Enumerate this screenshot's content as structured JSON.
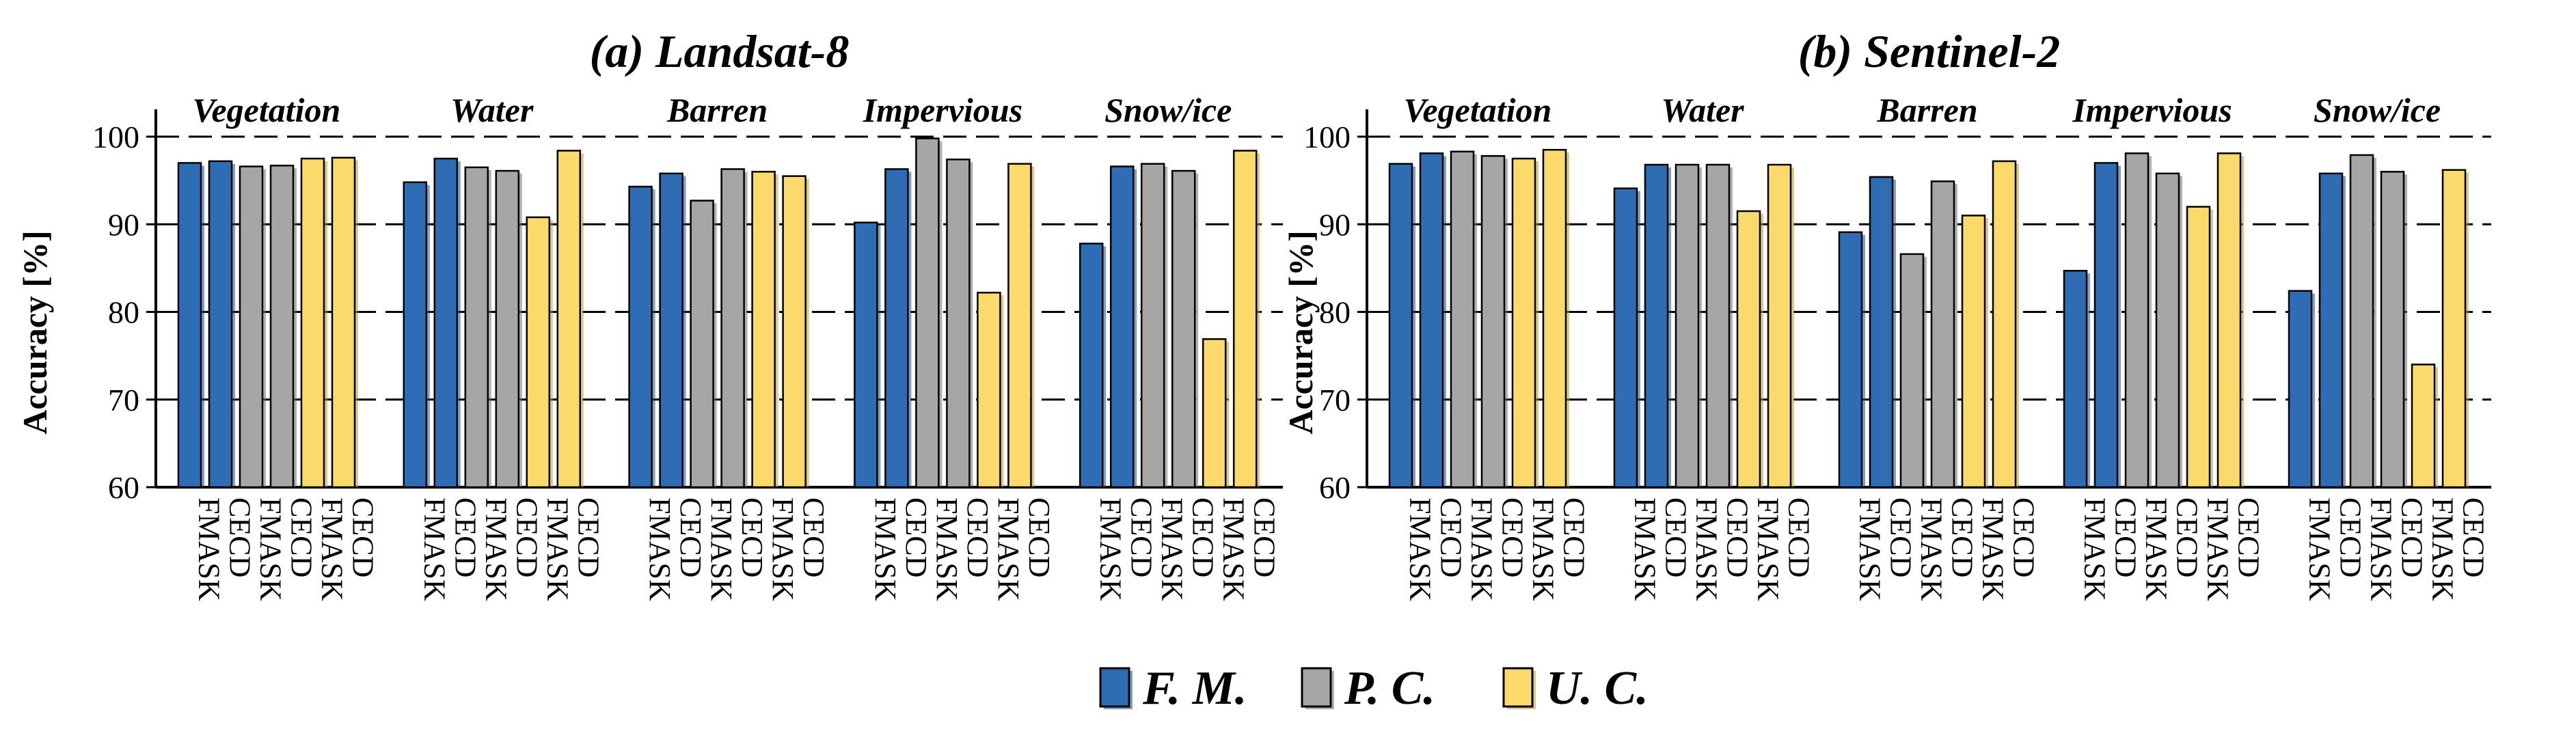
{
  "colors": {
    "fm": "#2e6db4",
    "pc": "#a6a6a6",
    "uc": "#fcd96b",
    "fm_shadow": "#1f4e8a",
    "pc_shadow": "#707070",
    "uc_shadow": "#b89a2c"
  },
  "legend": {
    "items": [
      {
        "key": "fm",
        "label": "F. M."
      },
      {
        "key": "pc",
        "label": "P. C."
      },
      {
        "key": "uc",
        "label": "U. C."
      }
    ]
  },
  "chart_data": [
    {
      "type": "bar",
      "title": "(a) Landsat-8",
      "ylabel": "Accuracy [%]",
      "ylim": [
        60,
        100
      ],
      "yticks": [
        60,
        70,
        80,
        90,
        100
      ],
      "grid": "dashed horizontal at 70, 80, 90, 100",
      "groups": [
        {
          "name": "Vegetation",
          "bars": [
            {
              "label": "FMASK",
              "metric": "fm",
              "value": 97.0
            },
            {
              "label": "CECD",
              "metric": "fm",
              "value": 97.2
            },
            {
              "label": "FMASK",
              "metric": "pc",
              "value": 96.6
            },
            {
              "label": "CECD",
              "metric": "pc",
              "value": 96.7
            },
            {
              "label": "FMASK",
              "metric": "uc",
              "value": 97.5
            },
            {
              "label": "CECD",
              "metric": "uc",
              "value": 97.6
            }
          ]
        },
        {
          "name": "Water",
          "bars": [
            {
              "label": "FMASK",
              "metric": "fm",
              "value": 94.8
            },
            {
              "label": "CECD",
              "metric": "fm",
              "value": 97.5
            },
            {
              "label": "FMASK",
              "metric": "pc",
              "value": 96.5
            },
            {
              "label": "CECD",
              "metric": "pc",
              "value": 96.1
            },
            {
              "label": "FMASK",
              "metric": "uc",
              "value": 90.8
            },
            {
              "label": "CECD",
              "metric": "uc",
              "value": 98.4
            }
          ]
        },
        {
          "name": "Barren",
          "bars": [
            {
              "label": "FMASK",
              "metric": "fm",
              "value": 94.3
            },
            {
              "label": "CECD",
              "metric": "fm",
              "value": 95.8
            },
            {
              "label": "FMASK",
              "metric": "pc",
              "value": 92.7
            },
            {
              "label": "CECD",
              "metric": "pc",
              "value": 96.3
            },
            {
              "label": "FMASK",
              "metric": "uc",
              "value": 96.0
            },
            {
              "label": "CECD",
              "metric": "uc",
              "value": 95.5
            }
          ]
        },
        {
          "name": "Impervious",
          "bars": [
            {
              "label": "FMASK",
              "metric": "fm",
              "value": 90.2
            },
            {
              "label": "CECD",
              "metric": "fm",
              "value": 96.3
            },
            {
              "label": "FMASK",
              "metric": "pc",
              "value": 99.8
            },
            {
              "label": "CECD",
              "metric": "pc",
              "value": 97.4
            },
            {
              "label": "FMASK",
              "metric": "uc",
              "value": 82.2
            },
            {
              "label": "CECD",
              "metric": "uc",
              "value": 96.9
            }
          ]
        },
        {
          "name": "Snow/ice",
          "bars": [
            {
              "label": "FMASK",
              "metric": "fm",
              "value": 87.8
            },
            {
              "label": "CECD",
              "metric": "fm",
              "value": 96.6
            },
            {
              "label": "FMASK",
              "metric": "pc",
              "value": 96.9
            },
            {
              "label": "CECD",
              "metric": "pc",
              "value": 96.1
            },
            {
              "label": "FMASK",
              "metric": "uc",
              "value": 76.9
            },
            {
              "label": "CECD",
              "metric": "uc",
              "value": 98.4
            }
          ]
        }
      ]
    },
    {
      "type": "bar",
      "title": "(b) Sentinel-2",
      "ylabel": "Accuracy [%]",
      "ylim": [
        60,
        100
      ],
      "yticks": [
        60,
        70,
        80,
        90,
        100
      ],
      "grid": "dashed horizontal at 70, 80, 90, 100",
      "groups": [
        {
          "name": "Vegetation",
          "bars": [
            {
              "label": "FMASK",
              "metric": "fm",
              "value": 96.9
            },
            {
              "label": "CECD",
              "metric": "fm",
              "value": 98.1
            },
            {
              "label": "FMASK",
              "metric": "pc",
              "value": 98.3
            },
            {
              "label": "CECD",
              "metric": "pc",
              "value": 97.8
            },
            {
              "label": "FMASK",
              "metric": "uc",
              "value": 97.5
            },
            {
              "label": "CECD",
              "metric": "uc",
              "value": 98.5
            }
          ]
        },
        {
          "name": "Water",
          "bars": [
            {
              "label": "FMASK",
              "metric": "fm",
              "value": 94.1
            },
            {
              "label": "CECD",
              "metric": "fm",
              "value": 96.8
            },
            {
              "label": "FMASK",
              "metric": "pc",
              "value": 96.8
            },
            {
              "label": "CECD",
              "metric": "pc",
              "value": 96.8
            },
            {
              "label": "FMASK",
              "metric": "uc",
              "value": 91.5
            },
            {
              "label": "CECD",
              "metric": "uc",
              "value": 96.8
            }
          ]
        },
        {
          "name": "Barren",
          "bars": [
            {
              "label": "FMASK",
              "metric": "fm",
              "value": 89.1
            },
            {
              "label": "CECD",
              "metric": "fm",
              "value": 95.4
            },
            {
              "label": "FMASK",
              "metric": "pc",
              "value": 86.6
            },
            {
              "label": "CECD",
              "metric": "pc",
              "value": 94.9
            },
            {
              "label": "FMASK",
              "metric": "uc",
              "value": 91.0
            },
            {
              "label": "CECD",
              "metric": "uc",
              "value": 97.2
            }
          ]
        },
        {
          "name": "Impervious",
          "bars": [
            {
              "label": "FMASK",
              "metric": "fm",
              "value": 84.7
            },
            {
              "label": "CECD",
              "metric": "fm",
              "value": 97.0
            },
            {
              "label": "FMASK",
              "metric": "pc",
              "value": 98.1
            },
            {
              "label": "CECD",
              "metric": "pc",
              "value": 95.8
            },
            {
              "label": "FMASK",
              "metric": "uc",
              "value": 92.0
            },
            {
              "label": "CECD",
              "metric": "uc",
              "value": 98.1
            }
          ]
        },
        {
          "name": "Snow/ice",
          "bars": [
            {
              "label": "FMASK",
              "metric": "fm",
              "value": 82.4
            },
            {
              "label": "CECD",
              "metric": "fm",
              "value": 95.8
            },
            {
              "label": "FMASK",
              "metric": "pc",
              "value": 97.9
            },
            {
              "label": "CECD",
              "metric": "pc",
              "value": 96.0
            },
            {
              "label": "FMASK",
              "metric": "uc",
              "value": 74.0
            },
            {
              "label": "CECD",
              "metric": "uc",
              "value": 96.2
            }
          ]
        }
      ]
    }
  ]
}
